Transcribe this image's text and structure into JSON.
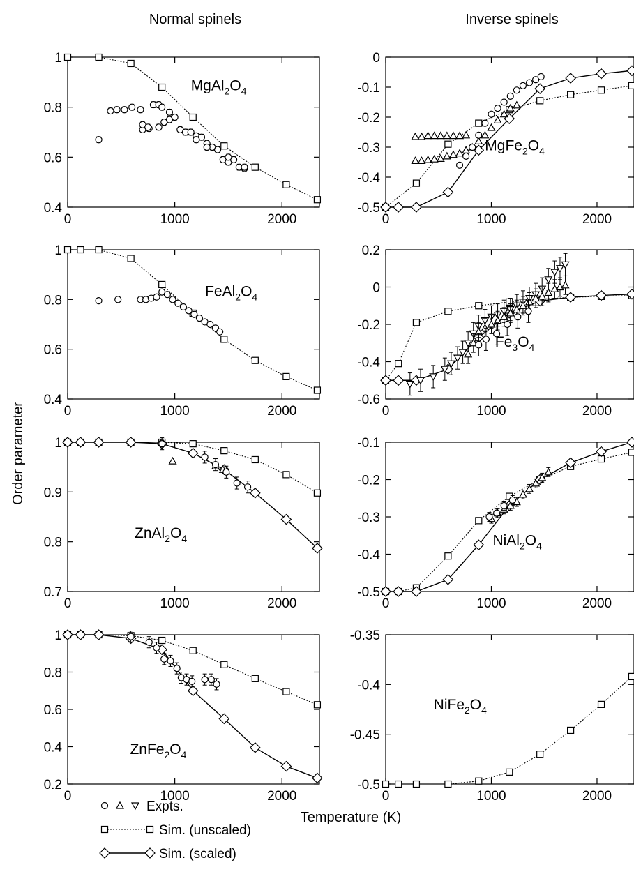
{
  "figure": {
    "col_titles": [
      "Normal spinels",
      "Inverse spinels"
    ],
    "xlabel": "Temperature (K)",
    "ylabel": "Order parameter"
  },
  "legend": {
    "expts": "Expts.",
    "unscaled": "Sim. (unscaled)",
    "scaled": "Sim. (scaled)"
  },
  "chart_data": [
    {
      "type": "scatter",
      "label": {
        "base1": "MgAl",
        "sub1": "2",
        "base2": "O",
        "sub2": "4"
      },
      "xlim": [
        0,
        2350
      ],
      "ylim": [
        0.4,
        1.0
      ],
      "xticks": [
        0,
        1000,
        2000
      ],
      "yticks": [
        0.4,
        0.6,
        0.8,
        1.0
      ],
      "ytick_labels": [
        "0.4",
        "0.6",
        "0.8",
        "1"
      ],
      "series": [
        {
          "marker": "square",
          "line": "dotted",
          "x": [
            0,
            290,
            590,
            880,
            1170,
            1460,
            1750,
            2040,
            2330
          ],
          "y": [
            1.0,
            1.0,
            0.975,
            0.88,
            0.76,
            0.645,
            0.56,
            0.49,
            0.43
          ]
        },
        {
          "marker": "circle",
          "line": "none",
          "errbar": 0.012,
          "x": [
            290,
            400,
            460,
            530,
            600,
            680,
            700,
            760,
            800,
            850,
            880,
            950,
            1000,
            1050,
            1100,
            1150,
            1200,
            1250,
            1300,
            1350,
            1400,
            1450,
            1500,
            1550,
            1600,
            1650
          ],
          "y": [
            0.67,
            0.785,
            0.79,
            0.79,
            0.8,
            0.79,
            0.71,
            0.715,
            0.81,
            0.81,
            0.8,
            0.78,
            0.76,
            0.71,
            0.7,
            0.7,
            0.685,
            0.68,
            0.655,
            0.64,
            0.63,
            0.59,
            0.58,
            0.59,
            0.56,
            0.555
          ]
        },
        {
          "marker": "circle",
          "line": "none",
          "errbar": 0.012,
          "x": [
            700,
            750,
            850,
            900,
            950,
            1200,
            1300,
            1400,
            1500,
            1650
          ],
          "y": [
            0.73,
            0.72,
            0.72,
            0.74,
            0.75,
            0.67,
            0.64,
            0.63,
            0.6,
            0.56
          ]
        }
      ]
    },
    {
      "type": "scatter",
      "label": {
        "base1": "MgFe",
        "sub1": "2",
        "base2": "O",
        "sub2": "4"
      },
      "xlim": [
        0,
        2350
      ],
      "ylim": [
        -0.5,
        0.0
      ],
      "xticks": [
        0,
        1000,
        2000
      ],
      "yticks": [
        -0.5,
        -0.4,
        -0.3,
        -0.2,
        -0.1,
        0.0
      ],
      "ytick_labels": [
        "-0.5",
        "-0.4",
        "-0.3",
        "-0.2",
        "-0.1",
        "0"
      ],
      "series": [
        {
          "marker": "square",
          "line": "dotted",
          "x": [
            0,
            290,
            590,
            880,
            1170,
            1460,
            1750,
            2040,
            2330
          ],
          "y": [
            -0.5,
            -0.42,
            -0.29,
            -0.22,
            -0.175,
            -0.145,
            -0.125,
            -0.11,
            -0.095
          ]
        },
        {
          "marker": "diamond",
          "line": "solid",
          "x": [
            0,
            120,
            290,
            590,
            880,
            1170,
            1460,
            1750,
            2040,
            2330
          ],
          "y": [
            -0.5,
            -0.5,
            -0.5,
            -0.45,
            -0.31,
            -0.205,
            -0.105,
            -0.07,
            -0.055,
            -0.045
          ]
        },
        {
          "marker": "triangle",
          "line": "none",
          "x": [
            280,
            340,
            400,
            460,
            520,
            580,
            640,
            700,
            760
          ],
          "y": [
            -0.265,
            -0.265,
            -0.262,
            -0.262,
            -0.262,
            -0.262,
            -0.262,
            -0.262,
            -0.26
          ]
        },
        {
          "marker": "triangle",
          "line": "none",
          "x": [
            280,
            340,
            400,
            460,
            520,
            580,
            640,
            700,
            760,
            820,
            880,
            940,
            1000,
            1060,
            1120,
            1180,
            1240
          ],
          "y": [
            -0.345,
            -0.345,
            -0.342,
            -0.34,
            -0.338,
            -0.33,
            -0.325,
            -0.32,
            -0.31,
            -0.3,
            -0.28,
            -0.26,
            -0.235,
            -0.21,
            -0.19,
            -0.17,
            -0.16
          ]
        },
        {
          "marker": "circle",
          "line": "none",
          "x": [
            700,
            760,
            820,
            880,
            940,
            1000,
            1060,
            1120,
            1180,
            1240,
            1300,
            1360,
            1420,
            1470
          ],
          "y": [
            -0.36,
            -0.33,
            -0.3,
            -0.26,
            -0.22,
            -0.19,
            -0.17,
            -0.15,
            -0.13,
            -0.11,
            -0.095,
            -0.085,
            -0.075,
            -0.065
          ]
        }
      ]
    },
    {
      "type": "scatter",
      "label": {
        "base1": "FeAl",
        "sub1": "2",
        "base2": "O",
        "sub2": "4"
      },
      "xlim": [
        0,
        2350
      ],
      "ylim": [
        0.4,
        1.0
      ],
      "xticks": [
        0,
        1000,
        2000
      ],
      "yticks": [
        0.4,
        0.6,
        0.8,
        1.0
      ],
      "ytick_labels": [
        "0.4",
        "0.6",
        "0.8",
        "1"
      ],
      "series": [
        {
          "marker": "square",
          "line": "dotted",
          "x": [
            0,
            120,
            290,
            590,
            880,
            1170,
            1460,
            1750,
            2040,
            2330
          ],
          "y": [
            1.0,
            1.0,
            1.0,
            0.965,
            0.86,
            0.745,
            0.64,
            0.555,
            0.49,
            0.435
          ]
        },
        {
          "marker": "circle",
          "line": "none",
          "x": [
            290,
            470,
            680,
            730,
            780,
            830,
            880,
            930,
            980,
            1030,
            1080,
            1130,
            1180,
            1230,
            1280,
            1330,
            1380,
            1420
          ],
          "y": [
            0.795,
            0.8,
            0.8,
            0.8,
            0.805,
            0.81,
            0.83,
            0.82,
            0.8,
            0.785,
            0.77,
            0.755,
            0.74,
            0.725,
            0.71,
            0.7,
            0.685,
            0.67
          ]
        }
      ]
    },
    {
      "type": "scatter",
      "label": {
        "base1": "Fe",
        "sub1": "3",
        "base2": "O",
        "sub2": "4"
      },
      "xlim": [
        0,
        2350
      ],
      "ylim": [
        -0.6,
        0.2
      ],
      "xticks": [
        0,
        1000,
        2000
      ],
      "yticks": [
        -0.6,
        -0.4,
        -0.2,
        0.0,
        0.2
      ],
      "ytick_labels": [
        "-0.6",
        "-0.4",
        "-0.2",
        "0",
        "0.2"
      ],
      "series": [
        {
          "marker": "square",
          "line": "dotted",
          "x": [
            0,
            120,
            290,
            590,
            880,
            1170,
            1460,
            1750,
            2040,
            2330
          ],
          "y": [
            -0.5,
            -0.41,
            -0.19,
            -0.13,
            -0.1,
            -0.08,
            -0.065,
            -0.055,
            -0.05,
            -0.045
          ]
        },
        {
          "marker": "diamond",
          "line": "solid",
          "x": [
            0,
            120,
            290,
            590,
            880,
            1170,
            1460,
            1750,
            2040,
            2330
          ],
          "y": [
            -0.5,
            -0.5,
            -0.5,
            -0.44,
            -0.27,
            -0.14,
            -0.075,
            -0.055,
            -0.045,
            -0.038
          ]
        },
        {
          "marker": "triangle-down",
          "line": "none",
          "errbar": 0.06,
          "x": [
            230,
            330,
            450,
            560,
            620,
            680,
            730,
            780,
            830,
            880,
            940,
            1000,
            1060,
            1120,
            1180,
            1240,
            1300,
            1360,
            1420,
            1480,
            1540,
            1600,
            1650,
            1700
          ],
          "y": [
            -0.52,
            -0.5,
            -0.48,
            -0.44,
            -0.41,
            -0.38,
            -0.35,
            -0.3,
            -0.25,
            -0.21,
            -0.18,
            -0.16,
            -0.15,
            -0.13,
            -0.12,
            -0.1,
            -0.08,
            -0.06,
            -0.04,
            -0.01,
            0.04,
            0.08,
            0.1,
            0.12
          ]
        },
        {
          "marker": "triangle",
          "line": "none",
          "errbar": 0.05,
          "x": [
            780,
            830,
            880,
            940,
            1000,
            1060,
            1120,
            1180,
            1240,
            1300,
            1360,
            1420,
            1480,
            1540,
            1600,
            1650,
            1700
          ],
          "y": [
            -0.36,
            -0.3,
            -0.24,
            -0.22,
            -0.2,
            -0.18,
            -0.16,
            -0.14,
            -0.12,
            -0.1,
            -0.08,
            -0.06,
            -0.05,
            -0.03,
            -0.01,
            0.0,
            0.01
          ]
        },
        {
          "marker": "circle",
          "line": "none",
          "errbar": 0.06,
          "x": [
            880,
            950,
            1050,
            1150,
            1250,
            1350
          ],
          "y": [
            -0.31,
            -0.28,
            -0.25,
            -0.2,
            -0.16,
            -0.13
          ]
        }
      ]
    },
    {
      "type": "scatter",
      "label": {
        "base1": "ZnAl",
        "sub1": "2",
        "base2": "O",
        "sub2": "4"
      },
      "xlim": [
        0,
        2350
      ],
      "ylim": [
        0.7,
        1.0
      ],
      "xticks": [
        0,
        1000,
        2000
      ],
      "yticks": [
        0.7,
        0.8,
        0.9,
        1.0
      ],
      "ytick_labels": [
        "0.7",
        "0.8",
        "0.9",
        "1"
      ],
      "series": [
        {
          "marker": "square",
          "line": "dotted",
          "x": [
            0,
            120,
            290,
            590,
            880,
            1170,
            1460,
            1750,
            2040,
            2330
          ],
          "y": [
            1.0,
            1.0,
            1.0,
            1.0,
            1.0,
            0.997,
            0.983,
            0.965,
            0.935,
            0.898
          ]
        },
        {
          "marker": "diamond",
          "line": "solid",
          "x": [
            0,
            120,
            290,
            590,
            880,
            1170,
            1460,
            1750,
            2040,
            2330
          ],
          "y": [
            1.0,
            1.0,
            1.0,
            1.0,
            0.997,
            0.978,
            0.945,
            0.898,
            0.845,
            0.787
          ]
        },
        {
          "marker": "triangle",
          "line": "none",
          "x": [
            980,
            1380,
            1450
          ],
          "y": [
            0.962,
            0.952,
            0.945
          ]
        },
        {
          "marker": "circle",
          "line": "none",
          "errbar": 0.012,
          "x": [
            880,
            1280,
            1380,
            1480,
            1580,
            1680
          ],
          "y": [
            0.997,
            0.97,
            0.955,
            0.94,
            0.918,
            0.91
          ]
        }
      ]
    },
    {
      "type": "scatter",
      "label": {
        "base1": "NiAl",
        "sub1": "2",
        "base2": "O",
        "sub2": "4"
      },
      "xlim": [
        0,
        2350
      ],
      "ylim": [
        -0.5,
        -0.1
      ],
      "xticks": [
        0,
        1000,
        2000
      ],
      "yticks": [
        -0.5,
        -0.4,
        -0.3,
        -0.2,
        -0.1
      ],
      "ytick_labels": [
        "-0.5",
        "-0.4",
        "-0.3",
        "-0.2",
        "-0.1"
      ],
      "series": [
        {
          "marker": "square",
          "line": "dotted",
          "x": [
            0,
            120,
            290,
            590,
            880,
            1170,
            1460,
            1750,
            2040,
            2330
          ],
          "y": [
            -0.5,
            -0.5,
            -0.49,
            -0.405,
            -0.31,
            -0.245,
            -0.2,
            -0.165,
            -0.145,
            -0.127
          ]
        },
        {
          "marker": "diamond",
          "line": "solid",
          "x": [
            0,
            120,
            290,
            590,
            880,
            1170,
            1460,
            1750,
            2040,
            2330
          ],
          "y": [
            -0.5,
            -0.5,
            -0.5,
            -0.468,
            -0.375,
            -0.27,
            -0.2,
            -0.155,
            -0.125,
            -0.1
          ]
        },
        {
          "marker": "triangle",
          "line": "none",
          "errbar": 0.012,
          "x": [
            1000,
            1060,
            1120,
            1180,
            1240,
            1300,
            1360,
            1420,
            1480,
            1540
          ],
          "y": [
            -0.305,
            -0.29,
            -0.28,
            -0.27,
            -0.26,
            -0.24,
            -0.225,
            -0.21,
            -0.195,
            -0.18
          ]
        },
        {
          "marker": "circle",
          "line": "none",
          "errbar": 0.012,
          "x": [
            980,
            1050,
            1120,
            1200
          ],
          "y": [
            -0.3,
            -0.29,
            -0.27,
            -0.255
          ]
        }
      ]
    },
    {
      "type": "scatter",
      "label": {
        "base1": "ZnFe",
        "sub1": "2",
        "base2": "O",
        "sub2": "4"
      },
      "xlim": [
        0,
        2350
      ],
      "ylim": [
        0.2,
        1.0
      ],
      "xticks": [
        0,
        1000,
        2000
      ],
      "yticks": [
        0.2,
        0.4,
        0.6,
        0.8,
        1.0
      ],
      "ytick_labels": [
        "0.2",
        "0.4",
        "0.6",
        "0.8",
        "1"
      ],
      "series": [
        {
          "marker": "square",
          "line": "dotted",
          "x": [
            0,
            120,
            290,
            590,
            880,
            1170,
            1460,
            1750,
            2040,
            2330
          ],
          "y": [
            1.0,
            1.0,
            1.0,
            0.995,
            0.97,
            0.915,
            0.84,
            0.765,
            0.695,
            0.625
          ]
        },
        {
          "marker": "diamond",
          "line": "solid",
          "x": [
            0,
            120,
            290,
            590,
            880,
            1170,
            1460,
            1750,
            2040,
            2330
          ],
          "y": [
            1.0,
            1.0,
            1.0,
            0.98,
            0.92,
            0.7,
            0.55,
            0.395,
            0.295,
            0.232
          ]
        },
        {
          "marker": "circle",
          "line": "none",
          "errbar": 0.03,
          "x": [
            590,
            760,
            830,
            900,
            960,
            1020,
            1060,
            1110,
            1160,
            1280,
            1340,
            1390
          ],
          "y": [
            0.99,
            0.96,
            0.93,
            0.87,
            0.86,
            0.82,
            0.77,
            0.76,
            0.75,
            0.76,
            0.76,
            0.735
          ]
        }
      ]
    },
    {
      "type": "line",
      "label": {
        "base1": "NiFe",
        "sub1": "2",
        "base2": "O",
        "sub2": "4"
      },
      "xlim": [
        0,
        2350
      ],
      "ylim": [
        -0.5,
        -0.35
      ],
      "xticks": [
        0,
        1000,
        2000
      ],
      "yticks": [
        -0.5,
        -0.45,
        -0.4,
        -0.35
      ],
      "ytick_labels": [
        "-0.5",
        "-0.45",
        "-0.4",
        "-0.35"
      ],
      "series": [
        {
          "marker": "square",
          "line": "dotted",
          "x": [
            0,
            120,
            290,
            590,
            880,
            1170,
            1460,
            1750,
            2040,
            2330
          ],
          "y": [
            -0.5,
            -0.5,
            -0.5,
            -0.5,
            -0.497,
            -0.488,
            -0.47,
            -0.446,
            -0.42,
            -0.392
          ]
        }
      ]
    }
  ]
}
